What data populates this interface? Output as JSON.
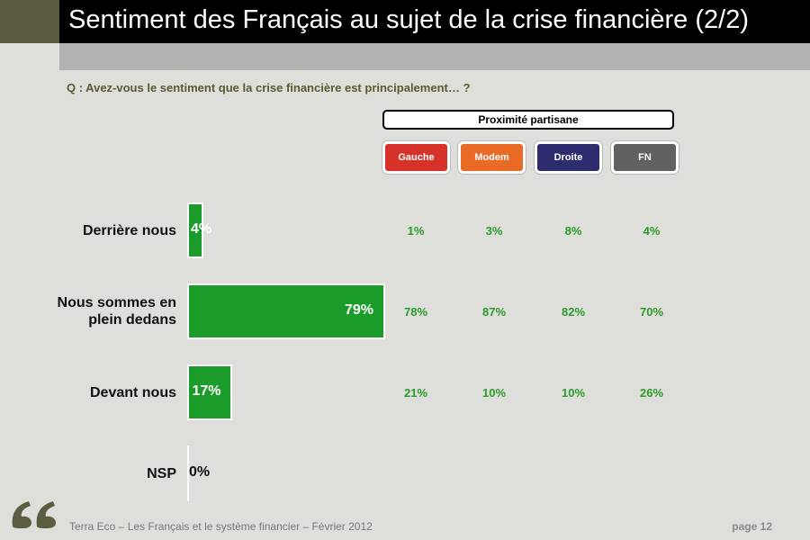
{
  "title": "Sentiment des Français au sujet de la crise financière (2/2)",
  "question": "Q : Avez-vous le sentiment que la crise financière est principalement… ?",
  "proximite_label": "Proximité partisane",
  "colors": {
    "bar": "#1a9b2a",
    "gauche": "#d6322a",
    "modem": "#e96a24",
    "droite": "#2e2b6e",
    "fn": "#616161",
    "pct_text": "#2a9b2a"
  },
  "parties": [
    {
      "label": "Gauche"
    },
    {
      "label": "Modem"
    },
    {
      "label": "Droite"
    },
    {
      "label": "FN"
    }
  ],
  "chart_data": {
    "type": "bar",
    "orientation": "horizontal",
    "categories": [
      "Derrière nous",
      "Nous sommes en plein dedans",
      "Devant nous",
      "NSP"
    ],
    "category_lines": [
      [
        "Derrière nous"
      ],
      [
        "Nous sommes en",
        "plein dedans"
      ],
      [
        "Devant nous"
      ],
      [
        "NSP"
      ]
    ],
    "values": [
      4,
      79,
      17,
      0
    ],
    "value_labels": [
      "4%",
      "79%",
      "17%",
      "0%"
    ],
    "xlim": [
      0,
      79
    ],
    "party_breakdown": [
      {
        "name": "Gauche",
        "values": [
          "1%",
          "78%",
          "21%",
          ""
        ]
      },
      {
        "name": "Modem",
        "values": [
          "3%",
          "87%",
          "10%",
          ""
        ]
      },
      {
        "name": "Droite",
        "values": [
          "8%",
          "82%",
          "10%",
          ""
        ]
      },
      {
        "name": "FN",
        "values": [
          "4%",
          "70%",
          "26%",
          ""
        ]
      }
    ]
  },
  "footer": {
    "text": "Terra Eco – Les Français et le système financier – Février 2012",
    "page": "page 12"
  }
}
